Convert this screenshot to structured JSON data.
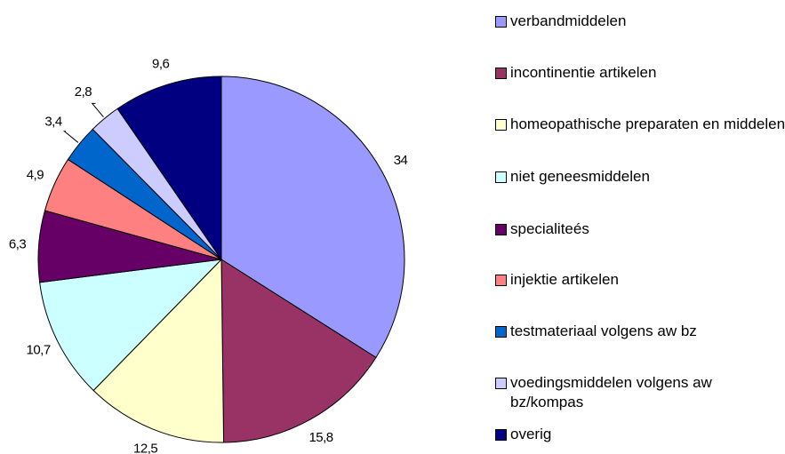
{
  "chart_data": {
    "type": "pie",
    "categories": [
      "verbandmiddelen",
      "incontinentie artikelen",
      "homeopathische preparaten en middelen",
      "niet geneesmiddelen",
      "specialiteés",
      "injektie artikelen",
      "testmateriaal volgens aw bz",
      "voedingsmiddelen volgens aw bz/kompas",
      "overig"
    ],
    "values": [
      34,
      15.8,
      12.5,
      10.7,
      6.3,
      4.9,
      3.4,
      2.8,
      9.6
    ],
    "value_labels": [
      "34",
      "15,8",
      "12,5",
      "10,7",
      "6,3",
      "4,9",
      "3,4",
      "2,8",
      "9,6"
    ],
    "colors": [
      "#9999ff",
      "#993366",
      "#ffffcc",
      "#ccffff",
      "#660066",
      "#ff8080",
      "#0066cc",
      "#ccccff",
      "#000080"
    ],
    "legend": "right"
  }
}
